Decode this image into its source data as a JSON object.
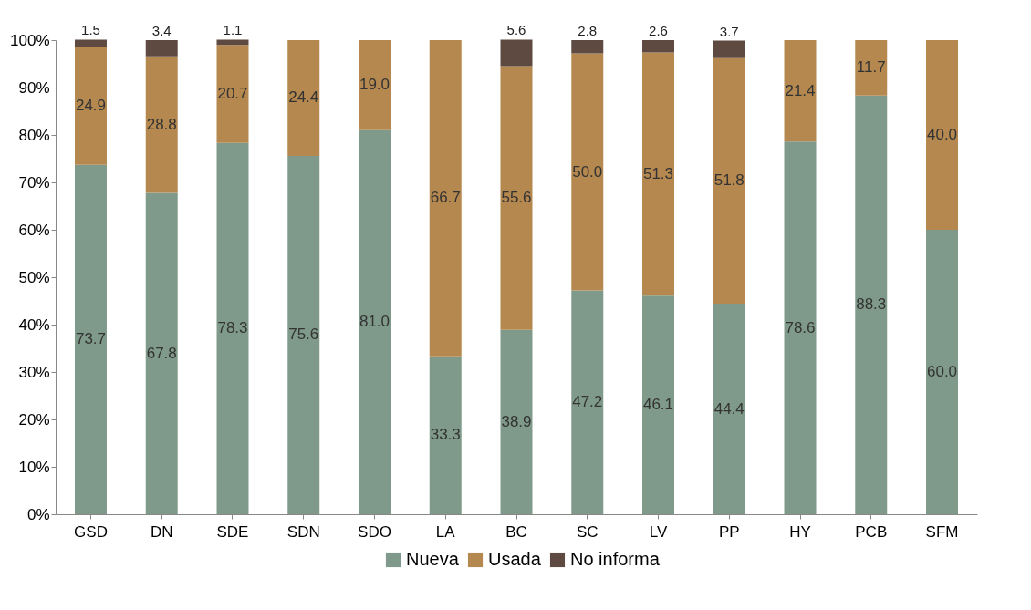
{
  "chart_data": {
    "type": "bar",
    "stacked": true,
    "categories": [
      "GSD",
      "DN",
      "SDE",
      "SDN",
      "SDO",
      "LA",
      "BC",
      "SC",
      "LV",
      "PP",
      "HY",
      "PCB",
      "SFM"
    ],
    "series": [
      {
        "name": "Nueva",
        "color": "#7f9a8a",
        "values": [
          73.7,
          67.8,
          78.3,
          75.6,
          81.0,
          33.3,
          38.9,
          47.2,
          46.1,
          44.4,
          78.6,
          88.3,
          60.0
        ],
        "value_labels": [
          "73.7",
          "67.8",
          "78.3",
          "75.6",
          "81.0",
          "33.3",
          "38.9",
          "47.2",
          "46.1",
          "44.4",
          "78.6",
          "88.3",
          "60.0"
        ]
      },
      {
        "name": "Usada",
        "color": "#b5884f",
        "values": [
          24.9,
          28.8,
          20.7,
          24.4,
          19.0,
          66.7,
          55.6,
          50.0,
          51.3,
          51.8,
          21.4,
          11.7,
          40.0
        ],
        "value_labels": [
          "24.9",
          "28.8",
          "20.7",
          "24.4",
          "19.0",
          "66.7",
          "55.6",
          "50.0",
          "51.3",
          "51.8",
          "21.4",
          "11.7",
          "40.0"
        ]
      },
      {
        "name": "No informa",
        "color": "#5e4a40",
        "values": [
          1.5,
          3.4,
          1.1,
          null,
          null,
          null,
          5.6,
          2.8,
          2.6,
          3.7,
          null,
          null,
          null
        ],
        "value_labels": [
          "1.5",
          "3.4",
          "1.1",
          null,
          null,
          null,
          "5.6",
          "2.8",
          "2.6",
          "3.7",
          null,
          null,
          null
        ]
      }
    ],
    "ylim": [
      0,
      100
    ],
    "yticks": [
      {
        "value": 0,
        "label": "0%"
      },
      {
        "value": 10,
        "label": "10%"
      },
      {
        "value": 20,
        "label": "20%"
      },
      {
        "value": 30,
        "label": "30%"
      },
      {
        "value": 40,
        "label": "40%"
      },
      {
        "value": 50,
        "label": "50%"
      },
      {
        "value": 60,
        "label": "60%"
      },
      {
        "value": 70,
        "label": "70%"
      },
      {
        "value": 80,
        "label": "80%"
      },
      {
        "value": 90,
        "label": "90%"
      },
      {
        "value": 100,
        "label": "100%"
      }
    ],
    "grid": false,
    "legend": "bottom"
  }
}
